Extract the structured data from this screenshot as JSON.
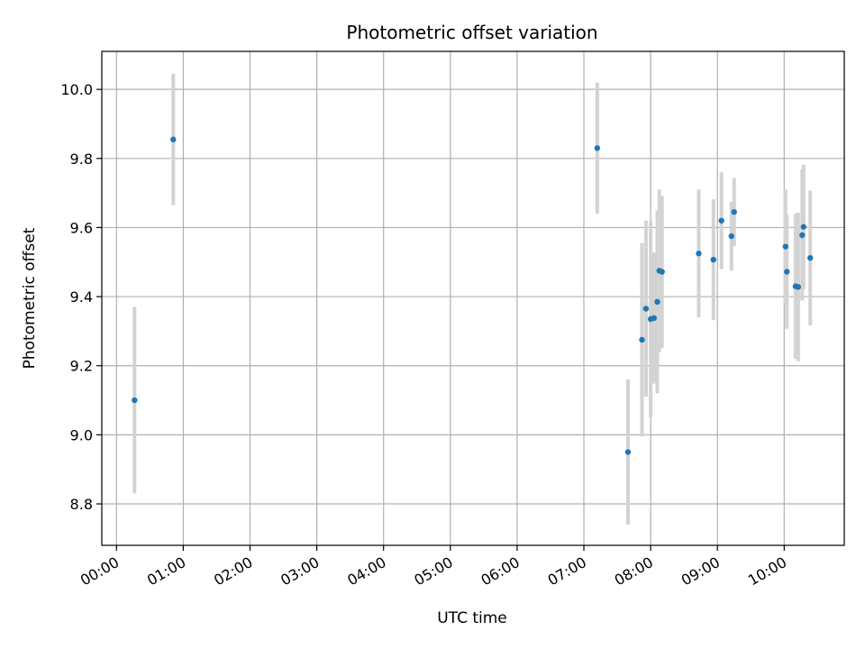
{
  "chart_data": {
    "type": "scatter",
    "title": "Photometric offset variation",
    "xlabel": "UTC time",
    "ylabel": "Photometric offset",
    "x_axis_unit": "hours",
    "xlim": [
      -0.22,
      10.9
    ],
    "ylim": [
      8.68,
      10.11
    ],
    "grid": true,
    "legend": "none",
    "x_ticks": [
      {
        "value": 0,
        "label": "00:00"
      },
      {
        "value": 1,
        "label": "01:00"
      },
      {
        "value": 2,
        "label": "02:00"
      },
      {
        "value": 3,
        "label": "03:00"
      },
      {
        "value": 4,
        "label": "04:00"
      },
      {
        "value": 5,
        "label": "05:00"
      },
      {
        "value": 6,
        "label": "06:00"
      },
      {
        "value": 7,
        "label": "07:00"
      },
      {
        "value": 8,
        "label": "08:00"
      },
      {
        "value": 9,
        "label": "09:00"
      },
      {
        "value": 10,
        "label": "10:00"
      }
    ],
    "y_ticks": [
      {
        "value": 8.8,
        "label": "8.8"
      },
      {
        "value": 9.0,
        "label": "9.0"
      },
      {
        "value": 9.2,
        "label": "9.2"
      },
      {
        "value": 9.4,
        "label": "9.4"
      },
      {
        "value": 9.6,
        "label": "9.6"
      },
      {
        "value": 9.8,
        "label": "9.8"
      },
      {
        "value": 10.0,
        "label": "10.0"
      }
    ],
    "colors": {
      "points": "#1f77b4",
      "error_bars": "#d3d3d3",
      "grid": "#b0b0b0"
    },
    "series": [
      {
        "points": [
          {
            "time": "00:16",
            "x": 0.27,
            "y": 9.1,
            "err": 0.27
          },
          {
            "time": "00:51",
            "x": 0.85,
            "y": 9.855,
            "err": 0.19
          },
          {
            "time": "07:12",
            "x": 7.2,
            "y": 9.83,
            "err": 0.19
          },
          {
            "time": "07:40",
            "x": 7.66,
            "y": 8.95,
            "err": 0.21
          },
          {
            "time": "07:52",
            "x": 7.87,
            "y": 9.275,
            "err": 0.28
          },
          {
            "time": "07:55",
            "x": 7.93,
            "y": 9.365,
            "err": 0.255
          },
          {
            "time": "08:00",
            "x": 8.0,
            "y": 9.335,
            "err": 0.285
          },
          {
            "time": "08:03",
            "x": 8.05,
            "y": 9.338,
            "err": 0.19
          },
          {
            "time": "08:06",
            "x": 8.1,
            "y": 9.385,
            "err": 0.265
          },
          {
            "time": "08:08",
            "x": 8.13,
            "y": 9.475,
            "err": 0.235
          },
          {
            "time": "08:10",
            "x": 8.17,
            "y": 9.472,
            "err": 0.22
          },
          {
            "time": "08:43",
            "x": 8.72,
            "y": 9.525,
            "err": 0.185
          },
          {
            "time": "08:56",
            "x": 8.94,
            "y": 9.507,
            "err": 0.175
          },
          {
            "time": "09:03",
            "x": 9.06,
            "y": 9.62,
            "err": 0.14
          },
          {
            "time": "09:12",
            "x": 9.21,
            "y": 9.575,
            "err": 0.1
          },
          {
            "time": "09:14",
            "x": 9.25,
            "y": 9.645,
            "err": 0.098
          },
          {
            "time": "10:01",
            "x": 10.02,
            "y": 9.545,
            "err": 0.165
          },
          {
            "time": "10:02",
            "x": 10.04,
            "y": 9.472,
            "err": 0.165
          },
          {
            "time": "10:10",
            "x": 10.17,
            "y": 9.43,
            "err": 0.21
          },
          {
            "time": "10:12",
            "x": 10.21,
            "y": 9.428,
            "err": 0.215
          },
          {
            "time": "10:16",
            "x": 10.27,
            "y": 9.578,
            "err": 0.19
          },
          {
            "time": "10:17",
            "x": 10.29,
            "y": 9.602,
            "err": 0.18
          },
          {
            "time": "10:23",
            "x": 10.39,
            "y": 9.512,
            "err": 0.195
          }
        ]
      }
    ]
  }
}
